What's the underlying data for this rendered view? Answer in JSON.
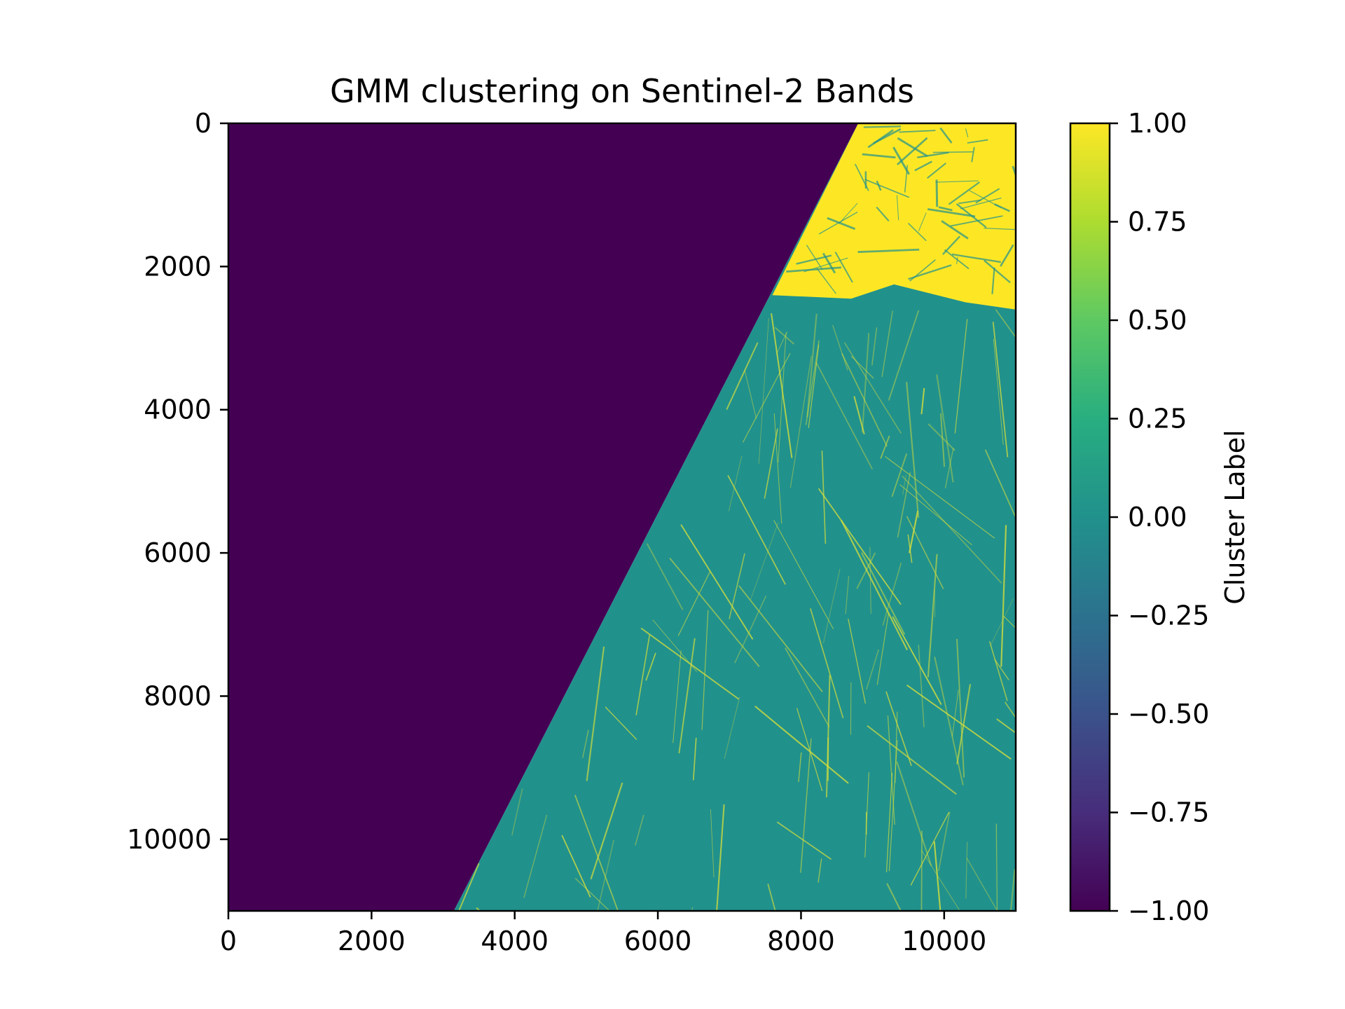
{
  "chart_data": {
    "type": "heatmap",
    "title": "GMM clustering on Sentinel-2 Bands",
    "xlabel": "",
    "ylabel": "",
    "xlim": [
      0,
      11000
    ],
    "ylim": [
      11000,
      0
    ],
    "x_ticks": [
      0,
      2000,
      4000,
      6000,
      8000,
      10000
    ],
    "x_tick_labels": [
      "0",
      "2000",
      "4000",
      "6000",
      "8000",
      "10000"
    ],
    "y_ticks": [
      0,
      2000,
      4000,
      6000,
      8000,
      10000
    ],
    "y_tick_labels": [
      "0",
      "2000",
      "4000",
      "6000",
      "8000",
      "10000"
    ],
    "colorbar": {
      "label": "Cluster Label",
      "range": [
        -1.0,
        1.0
      ],
      "colormap": "viridis",
      "ticks": [
        1.0,
        0.75,
        0.5,
        0.25,
        0.0,
        -0.25,
        -0.5,
        -0.75,
        -1.0
      ],
      "tick_labels": [
        "1.00",
        "0.75",
        "0.50",
        "0.25",
        "0.00",
        "−0.25",
        "−0.50",
        "−0.75",
        "−1.00"
      ]
    },
    "regions": [
      {
        "label": -1,
        "color": "#440154",
        "polygon": [
          [
            0,
            0
          ],
          [
            8800,
            0
          ],
          [
            3150,
            11000
          ],
          [
            0,
            11000
          ]
        ]
      },
      {
        "label": 0,
        "color": "#21918c",
        "polygon": [
          [
            8800,
            0
          ],
          [
            11000,
            0
          ],
          [
            11000,
            11000
          ],
          [
            3150,
            11000
          ]
        ]
      },
      {
        "label": 1,
        "color": "#fde725",
        "polygon": [
          [
            8800,
            0
          ],
          [
            11000,
            0
          ],
          [
            11000,
            2600
          ],
          [
            10300,
            2500
          ],
          [
            9700,
            2350
          ],
          [
            9300,
            2250
          ],
          [
            8700,
            2450
          ],
          [
            7600,
            2400
          ]
        ]
      }
    ],
    "grid": false
  }
}
